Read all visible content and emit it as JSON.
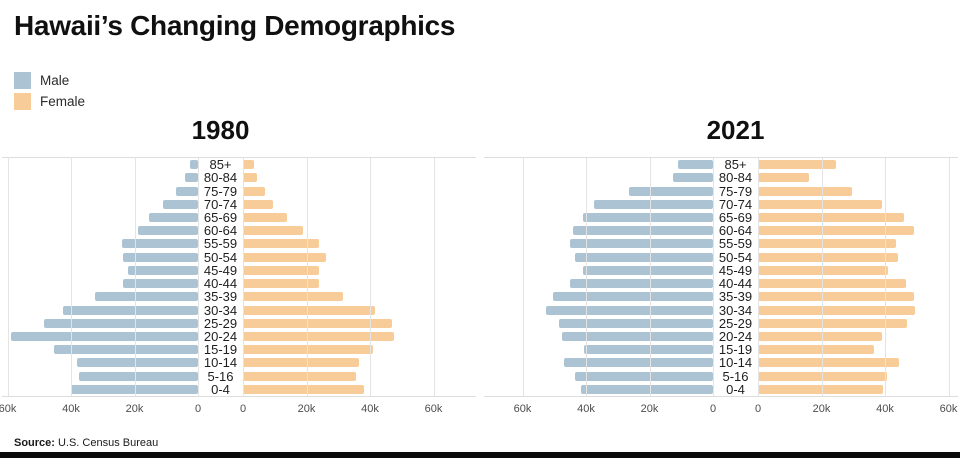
{
  "title": "Hawaii’s Changing Demographics",
  "legend": {
    "items": [
      {
        "label": "Male"
      },
      {
        "label": "Female"
      }
    ]
  },
  "colors": {
    "male": "#abc3d2",
    "female": "#f7cc98",
    "gridline": "#e4e4e4",
    "bottom_bar": "#0a0a0a"
  },
  "source": {
    "label": "Source:",
    "text": "U.S. Census Bureau"
  },
  "chart_data": [
    {
      "type": "bar",
      "subtype": "population-pyramid",
      "title": "1980",
      "unit": "thousands of people",
      "xlim_each_side": [
        0,
        60
      ],
      "grid": true,
      "legend_position": "top-left",
      "axis_ticks_male": [
        "60k",
        "40k",
        "20k",
        "0"
      ],
      "axis_tick_values_male": [
        60,
        40,
        20,
        0
      ],
      "axis_ticks_female": [
        "0",
        "20k",
        "40k",
        "60k"
      ],
      "axis_tick_values_female": [
        0,
        20,
        40,
        60
      ],
      "categories": [
        "85+",
        "80-84",
        "75-79",
        "70-74",
        "65-69",
        "60-64",
        "55-59",
        "50-54",
        "45-49",
        "40-44",
        "35-39",
        "30-34",
        "25-29",
        "20-24",
        "15-19",
        "10-14",
        "5-16",
        "0-4"
      ],
      "series": [
        {
          "name": "Male",
          "values": [
            2.5,
            4,
            7,
            11,
            15.5,
            19,
            24,
            23.5,
            22,
            23.5,
            32.5,
            42.5,
            48.5,
            59,
            45.5,
            38,
            37.5,
            40
          ]
        },
        {
          "name": "Female",
          "values": [
            3.5,
            4.5,
            7,
            9.5,
            14,
            19,
            24,
            26,
            24,
            24,
            31.5,
            41.5,
            47,
            47.5,
            41,
            36.5,
            35.5,
            38
          ]
        }
      ]
    },
    {
      "type": "bar",
      "subtype": "population-pyramid",
      "title": "2021",
      "unit": "thousands of people",
      "xlim_each_side": [
        0,
        60
      ],
      "grid": true,
      "legend_position": "top-left",
      "axis_ticks_male": [
        "60k",
        "40k",
        "20k",
        "0"
      ],
      "axis_tick_values_male": [
        60,
        40,
        20,
        0
      ],
      "axis_ticks_female": [
        "0",
        "20k",
        "40k",
        "60k"
      ],
      "axis_tick_values_female": [
        0,
        20,
        40,
        60
      ],
      "categories": [
        "85+",
        "80-84",
        "75-79",
        "70-74",
        "65-69",
        "60-64",
        "55-59",
        "50-54",
        "45-49",
        "40-44",
        "35-39",
        "30-34",
        "25-29",
        "20-24",
        "15-19",
        "10-14",
        "5-16",
        "0-4"
      ],
      "series": [
        {
          "name": "Male",
          "values": [
            11,
            12.5,
            26.5,
            37.5,
            41,
            44,
            45,
            43.5,
            41,
            45,
            50.5,
            52.5,
            48.5,
            47.5,
            40.5,
            47,
            43.5,
            41.5
          ]
        },
        {
          "name": "Female",
          "values": [
            24.5,
            16,
            29.5,
            39,
            46,
            49,
            43.5,
            44,
            41,
            46.5,
            49,
            49.5,
            47,
            39,
            36.5,
            44.5,
            40.5,
            39.5
          ]
        }
      ]
    }
  ]
}
